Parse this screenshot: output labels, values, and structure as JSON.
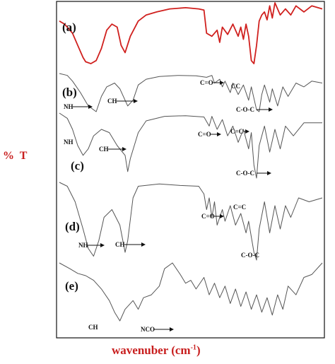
{
  "chart_data": {
    "type": "line",
    "ylabel": "% T",
    "xlabel_main": "wavenuber (cm",
    "xlabel_sup": "-1",
    "xlabel_close": ")",
    "grid": false,
    "series_colors": [
      "#d0201e",
      "#555555",
      "#555555",
      "#555555",
      "#555555"
    ],
    "series": [
      {
        "label": "(a)",
        "points": [
          [
            0,
            0.3
          ],
          [
            0.02,
            0.35
          ],
          [
            0.05,
            0.5
          ],
          [
            0.07,
            0.7
          ],
          [
            0.09,
            0.9
          ],
          [
            0.1,
            0.97
          ],
          [
            0.12,
            1.0
          ],
          [
            0.14,
            0.95
          ],
          [
            0.16,
            0.75
          ],
          [
            0.18,
            0.45
          ],
          [
            0.2,
            0.35
          ],
          [
            0.22,
            0.4
          ],
          [
            0.235,
            0.7
          ],
          [
            0.25,
            0.82
          ],
          [
            0.27,
            0.55
          ],
          [
            0.3,
            0.3
          ],
          [
            0.33,
            0.2
          ],
          [
            0.37,
            0.15
          ],
          [
            0.42,
            0.1
          ],
          [
            0.48,
            0.08
          ],
          [
            0.53,
            0.1
          ],
          [
            0.55,
            0.12
          ],
          [
            0.56,
            0.5
          ],
          [
            0.58,
            0.55
          ],
          [
            0.6,
            0.45
          ],
          [
            0.61,
            0.65
          ],
          [
            0.62,
            0.4
          ],
          [
            0.64,
            0.52
          ],
          [
            0.66,
            0.35
          ],
          [
            0.68,
            0.55
          ],
          [
            0.69,
            0.4
          ],
          [
            0.7,
            0.6
          ],
          [
            0.71,
            0.35
          ],
          [
            0.72,
            0.55
          ],
          [
            0.73,
            0.95
          ],
          [
            0.74,
            1.0
          ],
          [
            0.75,
            0.7
          ],
          [
            0.76,
            0.3
          ],
          [
            0.77,
            0.2
          ],
          [
            0.78,
            0.15
          ],
          [
            0.79,
            0.28
          ],
          [
            0.8,
            0.05
          ],
          [
            0.81,
            0.25
          ],
          [
            0.82,
            0.0
          ],
          [
            0.84,
            0.2
          ],
          [
            0.86,
            0.1
          ],
          [
            0.88,
            0.2
          ],
          [
            0.9,
            0.05
          ],
          [
            0.93,
            0.15
          ],
          [
            0.96,
            0.05
          ],
          [
            1.0,
            0.1
          ]
        ]
      },
      {
        "label": "(b)",
        "annotations": [
          "NH",
          "CH",
          "C=O",
          "CC",
          "C-O-C"
        ],
        "points": [
          [
            0,
            0.0
          ],
          [
            0.03,
            0.05
          ],
          [
            0.05,
            0.2
          ],
          [
            0.08,
            0.5
          ],
          [
            0.11,
            0.85
          ],
          [
            0.14,
            1.0
          ],
          [
            0.16,
            0.6
          ],
          [
            0.18,
            0.35
          ],
          [
            0.21,
            0.25
          ],
          [
            0.23,
            0.4
          ],
          [
            0.26,
            0.85
          ],
          [
            0.28,
            0.7
          ],
          [
            0.3,
            0.3
          ],
          [
            0.33,
            0.15
          ],
          [
            0.38,
            0.08
          ],
          [
            0.45,
            0.05
          ],
          [
            0.52,
            0.06
          ],
          [
            0.56,
            0.1
          ],
          [
            0.58,
            0.05
          ],
          [
            0.59,
            0.25
          ],
          [
            0.61,
            0.15
          ],
          [
            0.62,
            0.35
          ],
          [
            0.63,
            0.2
          ],
          [
            0.65,
            0.5
          ],
          [
            0.66,
            0.25
          ],
          [
            0.68,
            0.55
          ],
          [
            0.7,
            0.3
          ],
          [
            0.72,
            0.7
          ],
          [
            0.73,
            0.35
          ],
          [
            0.75,
            0.95
          ],
          [
            0.76,
            1.0
          ],
          [
            0.77,
            0.55
          ],
          [
            0.78,
            0.3
          ],
          [
            0.8,
            0.75
          ],
          [
            0.81,
            0.4
          ],
          [
            0.83,
            0.85
          ],
          [
            0.85,
            0.35
          ],
          [
            0.87,
            0.6
          ],
          [
            0.9,
            0.25
          ],
          [
            0.93,
            0.35
          ],
          [
            0.96,
            0.2
          ],
          [
            1.0,
            0.25
          ]
        ]
      },
      {
        "label": "(c)",
        "annotations": [
          "NH",
          "CH",
          "C=O",
          "C=C",
          "C-O-C"
        ],
        "points": [
          [
            0,
            0.0
          ],
          [
            0.03,
            0.08
          ],
          [
            0.05,
            0.25
          ],
          [
            0.07,
            0.5
          ],
          [
            0.09,
            0.65
          ],
          [
            0.11,
            0.55
          ],
          [
            0.13,
            0.35
          ],
          [
            0.16,
            0.25
          ],
          [
            0.19,
            0.3
          ],
          [
            0.22,
            0.5
          ],
          [
            0.25,
            0.65
          ],
          [
            0.26,
            0.9
          ],
          [
            0.27,
            0.7
          ],
          [
            0.3,
            0.3
          ],
          [
            0.33,
            0.12
          ],
          [
            0.4,
            0.05
          ],
          [
            0.48,
            0.04
          ],
          [
            0.55,
            0.06
          ],
          [
            0.57,
            0.2
          ],
          [
            0.58,
            0.05
          ],
          [
            0.6,
            0.25
          ],
          [
            0.62,
            0.1
          ],
          [
            0.64,
            0.35
          ],
          [
            0.66,
            0.2
          ],
          [
            0.68,
            0.45
          ],
          [
            0.7,
            0.25
          ],
          [
            0.72,
            0.55
          ],
          [
            0.73,
            0.3
          ],
          [
            0.74,
            0.8
          ],
          [
            0.75,
            1.0
          ],
          [
            0.76,
            0.5
          ],
          [
            0.78,
            0.2
          ],
          [
            0.8,
            0.6
          ],
          [
            0.82,
            0.25
          ],
          [
            0.84,
            0.55
          ],
          [
            0.86,
            0.2
          ],
          [
            0.89,
            0.35
          ],
          [
            0.93,
            0.15
          ],
          [
            1.0,
            0.15
          ]
        ]
      },
      {
        "label": "(d)",
        "annotations": [
          "NH",
          "CH",
          "C=O",
          "C=C",
          "C-O-C"
        ],
        "points": [
          [
            0,
            0.0
          ],
          [
            0.03,
            0.05
          ],
          [
            0.06,
            0.25
          ],
          [
            0.09,
            0.6
          ],
          [
            0.11,
            0.85
          ],
          [
            0.13,
            0.95
          ],
          [
            0.15,
            0.75
          ],
          [
            0.17,
            0.45
          ],
          [
            0.2,
            0.35
          ],
          [
            0.23,
            0.55
          ],
          [
            0.25,
            0.9
          ],
          [
            0.26,
            0.75
          ],
          [
            0.28,
            0.2
          ],
          [
            0.3,
            0.05
          ],
          [
            0.38,
            0.02
          ],
          [
            0.46,
            0.04
          ],
          [
            0.53,
            0.05
          ],
          [
            0.55,
            0.15
          ],
          [
            0.56,
            0.35
          ],
          [
            0.57,
            0.2
          ],
          [
            0.58,
            0.45
          ],
          [
            0.59,
            0.25
          ],
          [
            0.6,
            0.55
          ],
          [
            0.62,
            0.35
          ],
          [
            0.63,
            0.5
          ],
          [
            0.65,
            0.3
          ],
          [
            0.67,
            0.55
          ],
          [
            0.69,
            0.4
          ],
          [
            0.71,
            0.65
          ],
          [
            0.72,
            0.5
          ],
          [
            0.74,
            0.9
          ],
          [
            0.75,
            1.0
          ],
          [
            0.76,
            0.6
          ],
          [
            0.78,
            0.25
          ],
          [
            0.8,
            0.65
          ],
          [
            0.82,
            0.3
          ],
          [
            0.84,
            0.6
          ],
          [
            0.86,
            0.3
          ],
          [
            0.88,
            0.45
          ],
          [
            0.91,
            0.2
          ],
          [
            0.95,
            0.25
          ],
          [
            1.0,
            0.2
          ]
        ]
      },
      {
        "label": "(e)",
        "annotations": [
          "CH",
          "NCO"
        ],
        "points": [
          [
            0,
            0.0
          ],
          [
            0.04,
            0.1
          ],
          [
            0.07,
            0.18
          ],
          [
            0.1,
            0.22
          ],
          [
            0.13,
            0.3
          ],
          [
            0.16,
            0.45
          ],
          [
            0.19,
            0.65
          ],
          [
            0.21,
            0.85
          ],
          [
            0.23,
            1.0
          ],
          [
            0.25,
            0.8
          ],
          [
            0.28,
            0.65
          ],
          [
            0.3,
            0.8
          ],
          [
            0.32,
            0.6
          ],
          [
            0.35,
            0.55
          ],
          [
            0.38,
            0.4
          ],
          [
            0.4,
            0.1
          ],
          [
            0.43,
            0.0
          ],
          [
            0.46,
            0.2
          ],
          [
            0.48,
            0.35
          ],
          [
            0.5,
            0.3
          ],
          [
            0.52,
            0.45
          ],
          [
            0.55,
            0.25
          ],
          [
            0.57,
            0.55
          ],
          [
            0.59,
            0.35
          ],
          [
            0.61,
            0.6
          ],
          [
            0.63,
            0.4
          ],
          [
            0.65,
            0.7
          ],
          [
            0.67,
            0.45
          ],
          [
            0.69,
            0.75
          ],
          [
            0.71,
            0.5
          ],
          [
            0.73,
            0.8
          ],
          [
            0.75,
            0.55
          ],
          [
            0.77,
            0.85
          ],
          [
            0.79,
            0.6
          ],
          [
            0.81,
            0.9
          ],
          [
            0.83,
            0.55
          ],
          [
            0.85,
            0.8
          ],
          [
            0.87,
            0.4
          ],
          [
            0.9,
            0.55
          ],
          [
            0.93,
            0.25
          ],
          [
            0.96,
            0.2
          ],
          [
            1.0,
            0.0
          ]
        ]
      }
    ]
  }
}
